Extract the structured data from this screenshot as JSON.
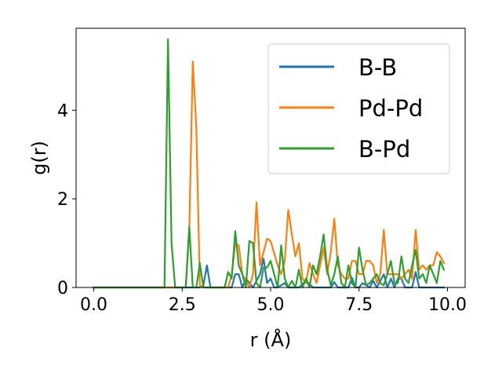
{
  "chart_data": {
    "type": "line",
    "title": "",
    "xlabel": "r (Å)",
    "ylabel": "g(r)",
    "xlim": [
      -0.5,
      10.5
    ],
    "ylim": [
      0,
      5.85
    ],
    "grid": false,
    "legend_position": "top-right",
    "x_ticks": [
      0.0,
      2.5,
      5.0,
      7.5,
      10.0
    ],
    "x_tick_labels": [
      "0.0",
      "2.5",
      "5.0",
      "7.5",
      "10.0"
    ],
    "y_ticks": [
      0,
      2,
      4
    ],
    "y_tick_labels": [
      "0",
      "2",
      "4"
    ],
    "series": [
      {
        "name": "B-B",
        "color": "#1f77b4",
        "x": [
          0.0,
          2.9,
          3.0,
          3.1,
          3.2,
          3.3,
          3.6,
          3.9,
          4.0,
          4.1,
          4.2,
          4.3,
          4.5,
          4.7,
          4.8,
          4.9,
          5.0,
          5.1,
          5.2,
          5.4,
          5.5,
          5.6,
          5.8,
          6.0,
          6.2,
          6.5,
          6.6,
          6.7,
          6.8,
          6.9,
          7.0,
          7.2,
          7.3,
          7.4,
          7.5,
          7.6,
          7.8,
          7.9,
          8.0,
          8.2,
          8.3,
          8.4,
          8.5,
          8.6,
          8.7,
          8.8,
          9.0,
          9.1,
          9.2,
          9.4,
          9.6,
          9.8,
          9.9
        ],
        "values": [
          0.0,
          0.0,
          0.0,
          0.05,
          0.5,
          0.0,
          0.0,
          0.0,
          0.3,
          0.3,
          0.0,
          0.2,
          0.0,
          0.3,
          0.65,
          0.1,
          0.2,
          0.0,
          0.0,
          0.1,
          0.0,
          0.0,
          0.0,
          0.15,
          0.0,
          0.0,
          0.0,
          0.0,
          0.12,
          0.0,
          0.0,
          0.0,
          0.22,
          0.0,
          0.0,
          0.1,
          0.0,
          0.15,
          0.0,
          0.3,
          0.0,
          0.2,
          0.0,
          0.2,
          0.2,
          0.0,
          0.0,
          0.35,
          0.0,
          0.0,
          0.0,
          0.0,
          0.0
        ]
      },
      {
        "name": "Pd-Pd",
        "color": "#ff7f0e",
        "x": [
          0.0,
          2.6,
          2.7,
          2.8,
          2.9,
          3.0,
          3.1,
          3.8,
          3.9,
          4.0,
          4.1,
          4.2,
          4.4,
          4.5,
          4.6,
          4.7,
          4.8,
          4.9,
          5.0,
          5.2,
          5.3,
          5.4,
          5.5,
          5.6,
          5.7,
          5.8,
          5.9,
          6.0,
          6.1,
          6.2,
          6.3,
          6.4,
          6.5,
          6.6,
          6.7,
          6.8,
          6.9,
          7.0,
          7.1,
          7.2,
          7.3,
          7.4,
          7.5,
          7.6,
          7.7,
          7.8,
          7.9,
          8.0,
          8.1,
          8.2,
          8.3,
          8.4,
          8.5,
          8.6,
          8.7,
          8.8,
          8.9,
          9.0,
          9.1,
          9.2,
          9.3,
          9.4,
          9.5,
          9.6,
          9.7,
          9.8,
          9.9
        ],
        "values": [
          0.0,
          0.0,
          1.3,
          5.1,
          3.6,
          0.05,
          0.0,
          0.0,
          0.3,
          0.98,
          0.95,
          0.3,
          0.0,
          0.3,
          1.92,
          0.5,
          0.8,
          1.1,
          1.05,
          0.5,
          0.3,
          0.6,
          1.75,
          1.2,
          0.7,
          1.0,
          0.2,
          0.1,
          0.55,
          0.3,
          0.1,
          0.5,
          0.9,
          0.3,
          0.8,
          1.55,
          0.5,
          0.3,
          0.2,
          0.2,
          0.6,
          0.6,
          0.3,
          0.3,
          0.6,
          0.6,
          0.5,
          0.1,
          0.3,
          1.3,
          0.3,
          0.3,
          0.3,
          0.3,
          0.2,
          0.3,
          0.4,
          0.2,
          1.3,
          0.4,
          0.5,
          0.4,
          0.5,
          0.5,
          0.8,
          0.7,
          0.55
        ]
      },
      {
        "name": "B-Pd",
        "color": "#2ca02c",
        "x": [
          0.0,
          2.0,
          2.1,
          2.2,
          2.3,
          2.6,
          2.7,
          2.8,
          2.9,
          3.0,
          3.1,
          3.2,
          3.5,
          3.7,
          3.8,
          3.9,
          4.0,
          4.1,
          4.2,
          4.3,
          4.4,
          4.5,
          4.6,
          4.7,
          4.8,
          4.9,
          5.0,
          5.1,
          5.2,
          5.3,
          5.4,
          5.5,
          5.6,
          5.7,
          5.8,
          5.9,
          6.0,
          6.1,
          6.2,
          6.3,
          6.4,
          6.5,
          6.6,
          6.7,
          6.8,
          6.9,
          7.0,
          7.1,
          7.2,
          7.3,
          7.4,
          7.5,
          7.6,
          7.7,
          7.8,
          7.9,
          8.0,
          8.1,
          8.2,
          8.3,
          8.4,
          8.5,
          8.6,
          8.7,
          8.8,
          8.9,
          9.0,
          9.1,
          9.2,
          9.3,
          9.4,
          9.5,
          9.6,
          9.7,
          9.8,
          9.9
        ],
        "values": [
          0.0,
          0.0,
          5.6,
          1.0,
          0.0,
          0.0,
          1.37,
          0.0,
          0.0,
          0.55,
          0.0,
          0.0,
          0.0,
          0.0,
          0.35,
          0.2,
          1.27,
          0.5,
          0.3,
          0.0,
          1.05,
          1.0,
          0.1,
          0.0,
          0.45,
          0.45,
          0.6,
          0.3,
          0.0,
          0.95,
          0.2,
          0.0,
          0.15,
          0.0,
          0.4,
          0.0,
          0.2,
          0.0,
          0.5,
          0.3,
          0.7,
          1.2,
          0.4,
          0.05,
          0.3,
          0.7,
          0.1,
          0.0,
          0.5,
          0.1,
          0.0,
          0.9,
          0.4,
          0.05,
          0.1,
          0.2,
          0.3,
          0.1,
          0.05,
          0.3,
          0.6,
          0.1,
          0.1,
          0.7,
          0.2,
          0.1,
          0.5,
          0.85,
          0.2,
          0.3,
          0.1,
          0.5,
          0.3,
          0.1,
          0.6,
          0.4
        ]
      }
    ]
  }
}
